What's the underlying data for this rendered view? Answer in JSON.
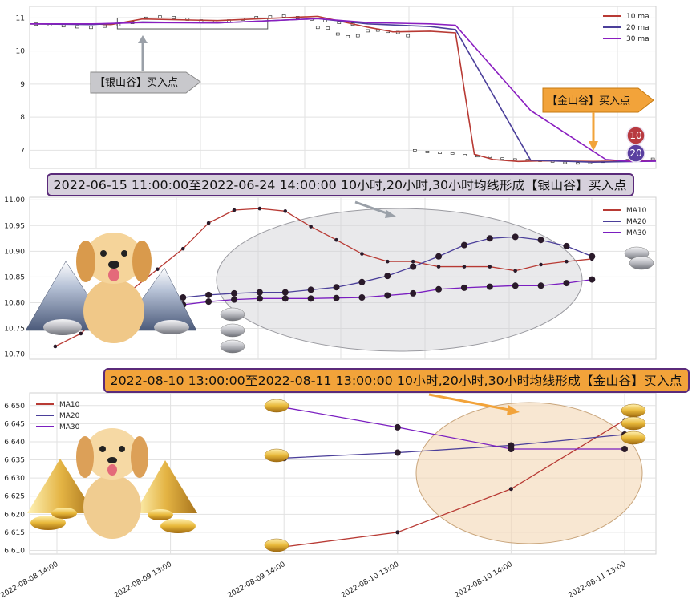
{
  "chart_data": [
    {
      "type": "line",
      "panel": "top",
      "ylim": [
        6.45,
        11.35
      ],
      "yticks": [
        7,
        8,
        9,
        10,
        11
      ],
      "xlim": [
        0,
        100
      ],
      "grid": true,
      "legend_position": "top-right",
      "series": [
        {
          "name": "10 ma",
          "color": "#b83a34",
          "x": [
            0,
            10,
            13,
            18,
            30,
            46,
            54,
            58,
            64,
            68,
            71,
            74,
            78,
            82,
            90,
            94,
            100
          ],
          "y": [
            10.82,
            10.82,
            10.8,
            10.97,
            10.92,
            11.05,
            10.72,
            10.58,
            10.6,
            10.55,
            6.88,
            6.72,
            6.66,
            6.68,
            6.66,
            6.67,
            6.7
          ]
        },
        {
          "name": "20 ma",
          "color": "#4b3f9a",
          "x": [
            0,
            10,
            18,
            30,
            46,
            54,
            64,
            68,
            80,
            90,
            94,
            100
          ],
          "y": [
            10.82,
            10.8,
            10.88,
            10.85,
            10.98,
            10.82,
            10.74,
            10.65,
            6.7,
            6.64,
            6.65,
            6.67
          ]
        },
        {
          "name": "30 ma",
          "color": "#8a1ec0",
          "x": [
            0,
            10,
            18,
            30,
            46,
            54,
            64,
            68,
            80,
            92,
            96,
            100
          ],
          "y": [
            10.82,
            10.82,
            10.86,
            10.85,
            10.98,
            10.86,
            10.82,
            10.78,
            8.2,
            6.72,
            6.66,
            6.67
          ]
        }
      ],
      "annotations": [
        {
          "text": "【银山谷】买入点",
          "kind": "silver-arrow"
        },
        {
          "text": "【金山谷】买入点",
          "kind": "gold-arrow"
        },
        {
          "text": "10",
          "kind": "badge",
          "color": "#b83a40"
        },
        {
          "text": "20",
          "kind": "badge",
          "color": "#5a3fa0"
        }
      ]
    },
    {
      "type": "line",
      "panel": "middle",
      "title": "2022-06-15 11:00:00至2022-06-24 14:00:00 10小时,20小时,30小时均线形成【银山谷】买入点",
      "ylim": [
        10.69,
        11.005
      ],
      "yticks": [
        "11.00",
        "10.95",
        "10.90",
        "10.85",
        "10.80",
        "10.75",
        "10.70"
      ],
      "xlim": [
        -1,
        23.5
      ],
      "grid": true,
      "legend_position": "top-right",
      "series": [
        {
          "name": "MA10",
          "color": "#b83a34",
          "values": [
            10.715,
            10.74,
            10.785,
            10.825,
            10.865,
            10.905,
            10.955,
            10.98,
            10.983,
            10.978,
            10.948,
            10.922,
            10.895,
            10.88,
            10.88,
            10.87,
            10.87,
            10.87,
            10.862,
            10.874,
            10.88,
            10.885
          ]
        },
        {
          "name": "MA20",
          "color": "#4b3f9a",
          "values": [
            10.75,
            10.77,
            10.78,
            10.785,
            10.79,
            10.81,
            10.815,
            10.818,
            10.82,
            10.82,
            10.825,
            10.83,
            10.84,
            10.852,
            10.87,
            10.89,
            10.912,
            10.925,
            10.928,
            10.922,
            10.91,
            10.89
          ]
        },
        {
          "name": "MA30",
          "color": "#7a1ec0",
          "values": [
            10.76,
            10.77,
            10.778,
            10.783,
            10.79,
            10.796,
            10.802,
            10.806,
            10.808,
            10.808,
            10.808,
            10.809,
            10.81,
            10.814,
            10.818,
            10.826,
            10.829,
            10.831,
            10.833,
            10.833,
            10.838,
            10.845
          ]
        }
      ]
    },
    {
      "type": "line",
      "panel": "bottom",
      "title": "2022-08-10 13:00:00至2022-08-11 13:00:00 10小时,20小时,30小时均线形成【金山谷】买入点",
      "ylim": [
        6.609,
        6.6535
      ],
      "yticks": [
        "6.650",
        "6.645",
        "6.640",
        "6.635",
        "6.630",
        "6.625",
        "6.620",
        "6.615",
        "6.610"
      ],
      "categories": [
        "2022-08-08 14:00",
        "2022-08-09 13:00",
        "2022-08-09 14:00",
        "2022-08-10 13:00",
        "2022-08-10 14:00",
        "2022-08-11 13:00"
      ],
      "grid": true,
      "legend_position": "top-left",
      "series": [
        {
          "name": "MA10",
          "color": "#b83a34",
          "x": [
            2,
            3,
            4,
            5
          ],
          "values": [
            6.611,
            6.615,
            6.627,
            6.646
          ]
        },
        {
          "name": "MA20",
          "color": "#4b3f9a",
          "x": [
            2,
            3,
            4,
            5
          ],
          "values": [
            6.6355,
            6.637,
            6.639,
            6.642
          ]
        },
        {
          "name": "MA30",
          "color": "#7a1ec0",
          "x": [
            2,
            3,
            4,
            5
          ],
          "values": [
            6.6495,
            6.644,
            6.638,
            6.638
          ]
        }
      ]
    }
  ],
  "colors": {
    "ma10": "#b83a34",
    "ma20": "#4b3f9a",
    "ma30": "#8a1ec0",
    "silver_banner": "#d6d0dc",
    "gold_banner": "#f2a33a",
    "banner_border": "#5a2a7a"
  },
  "icons": [
    "silver-ingot-icon",
    "gold-ingot-icon",
    "dog-illustration",
    "snow-mountain-illustration",
    "gold-pyramid-illustration"
  ]
}
